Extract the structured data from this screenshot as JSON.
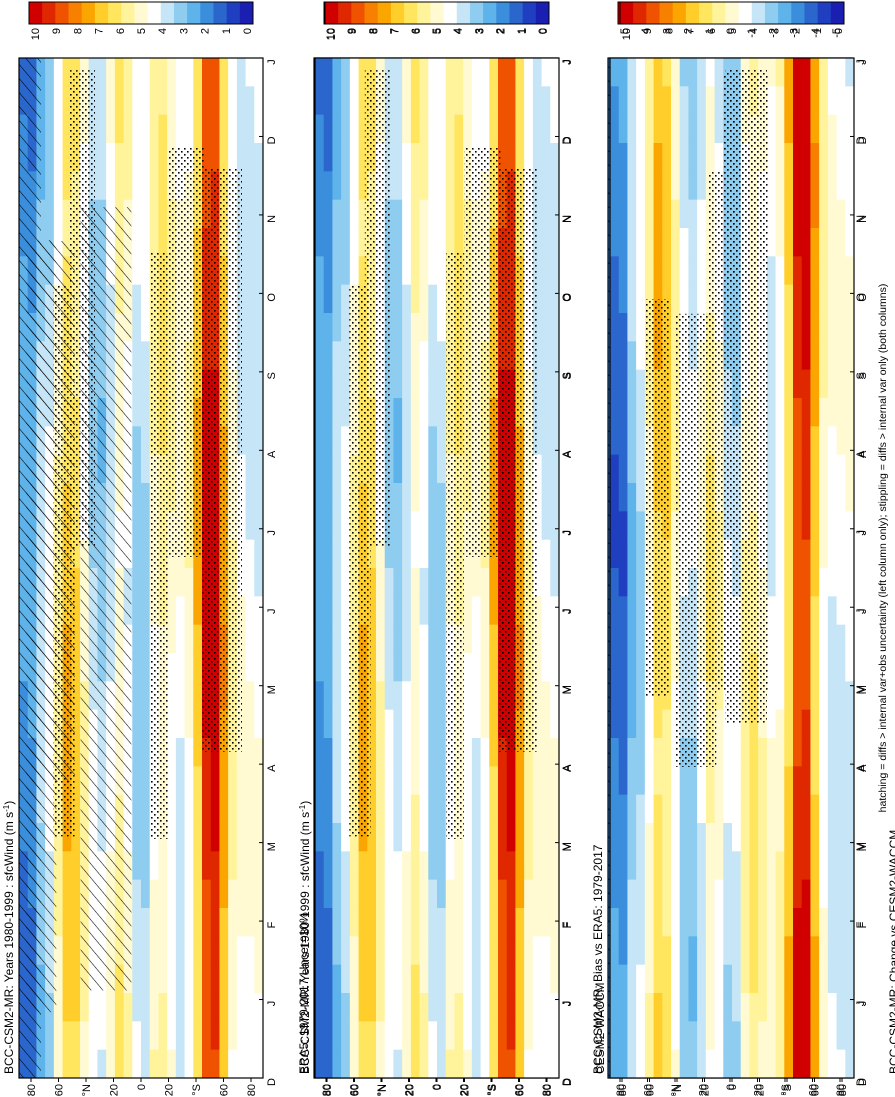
{
  "figure": {
    "footnote": "hatching = diffs > internal var+obs uncertainty (left column only); stippling = diffs > internal var only (both columns)",
    "month_labels": [
      "D",
      "J",
      "F",
      "M",
      "A",
      "M",
      "J",
      "J",
      "A",
      "S",
      "O",
      "N",
      "D",
      "J"
    ],
    "lat_labels": [
      "80",
      "60",
      "°N",
      "20",
      "0",
      "20",
      "°S",
      "60",
      "80"
    ]
  },
  "chart_data": [
    {
      "type": "heatmap",
      "id": "model-climatology",
      "title": "BCC-CSM2-MR: Years 1980-1999 : sfcWind (m s-1)",
      "title_main": "BCC-CSM2-MR: Years 1980-1999 : sfcWind (m s",
      "title_sup": "-1",
      "title_end": ")",
      "x": "month (D to J)",
      "y": "latitude 90S to 90N",
      "colorbar": [
        "10",
        "9",
        "8",
        "7",
        "6",
        "5",
        "4",
        "3",
        "2",
        "1",
        "0"
      ],
      "range": [
        0,
        10
      ]
    },
    {
      "type": "heatmap",
      "id": "reanalysis-climatology",
      "title": "ERA5: 1979-2017 Uncer=10%",
      "colorbar": [
        "10",
        "9",
        "8",
        "7",
        "6",
        "5",
        "4",
        "3",
        "2",
        "1",
        "0"
      ],
      "range": [
        0,
        10
      ]
    },
    {
      "type": "heatmap",
      "id": "model-bias",
      "title": "BCC-CSM2-MR: Bias vs ERA5: 1979-2017",
      "colorbar": [
        "5",
        "4",
        "3",
        "2",
        "1",
        "0",
        "-1",
        "-2",
        "-3",
        "-4",
        "-5"
      ],
      "range": [
        -5,
        5
      ]
    },
    {
      "type": "heatmap",
      "id": "model-climatology-repeat",
      "title": "BCC-CSM2-MR: Years 1980-1999 : sfcWind (m s-1)",
      "title_main": "BCC-CSM2-MR: Years 1980-1999 : sfcWind (m s",
      "title_sup": "-1",
      "title_end": ")",
      "colorbar": [
        "10",
        "9",
        "8",
        "7",
        "6",
        "5",
        "4",
        "3",
        "2",
        "1",
        "0"
      ],
      "range": [
        0,
        10
      ]
    },
    {
      "type": "heatmap",
      "id": "comparison-climatology",
      "title": "CESM2-WACCM",
      "colorbar": [
        "10",
        "9",
        "8",
        "7",
        "6",
        "5",
        "4",
        "3",
        "2",
        "1",
        "0"
      ],
      "range": [
        0,
        10
      ]
    },
    {
      "type": "heatmap",
      "id": "model-change",
      "title": "BCC-CSM2-MR: Change vs CESM2-WACCM",
      "colorbar": [
        "5",
        "4",
        "3",
        "2",
        "1",
        "0",
        "-1",
        "-2",
        "-3",
        "-4",
        "-5"
      ],
      "range": [
        -5,
        5
      ]
    }
  ],
  "colors": {
    "abs_scale": [
      "#d00000",
      "#e02800",
      "#ef5300",
      "#f78000",
      "#fba600",
      "#ffce2a",
      "#ffe65e",
      "#fff39c",
      "#fffad2",
      "#ffffff",
      "#c6e6f7",
      "#8fcdf0",
      "#5db3ea",
      "#3a8edc",
      "#2b66cc",
      "#1f3fc0",
      "#1a1fb2"
    ],
    "diff_scale": [
      "#d00000",
      "#e63b00",
      "#f46e00",
      "#fba100",
      "#ffcf29",
      "#ffe86d",
      "#fff7b8",
      "#ffffff",
      "#ffffff",
      "#b9e2f6",
      "#79c7ef",
      "#41a8e6",
      "#2c7dd8",
      "#2350c6",
      "#1b27b6"
    ]
  }
}
